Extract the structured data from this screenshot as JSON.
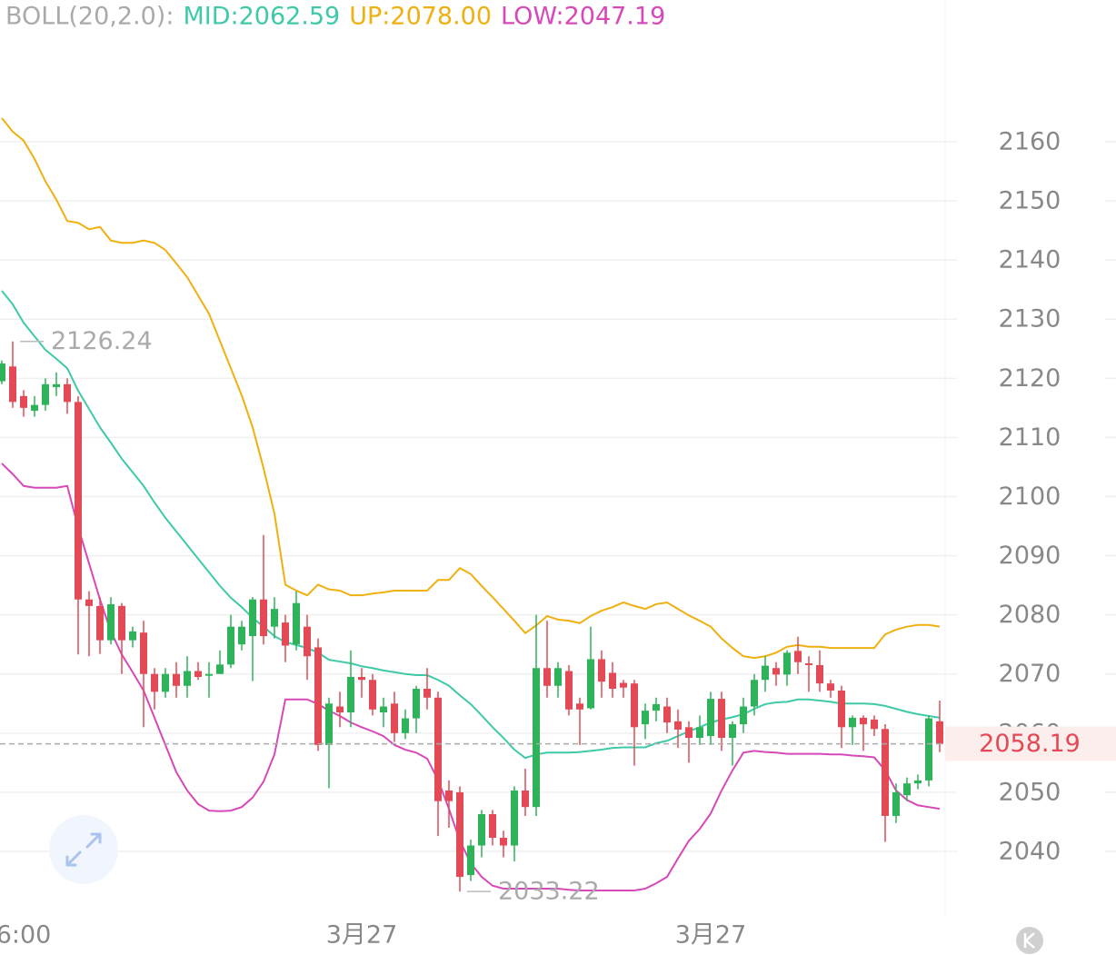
{
  "chart_data": {
    "type": "candlestick",
    "indicator": "BOLL(20,2.0):",
    "categories": [
      null,
      null,
      "6:00",
      null,
      null,
      null,
      null,
      null,
      null,
      null,
      null,
      null,
      null,
      null,
      null,
      null,
      null,
      null,
      null,
      null,
      null,
      null,
      null,
      null,
      null,
      null,
      null,
      null,
      null,
      null,
      null,
      null,
      null,
      "3月27",
      null,
      null,
      null,
      null,
      null,
      null,
      null,
      null,
      null,
      null,
      null,
      null,
      null,
      null,
      null,
      null,
      null,
      null,
      null,
      null,
      null,
      null,
      null,
      null,
      null,
      null,
      null,
      null,
      null,
      null,
      null,
      "3月27",
      null,
      null,
      null,
      null,
      null,
      null,
      null,
      null,
      null,
      null,
      null,
      null,
      null,
      null,
      null,
      null,
      null,
      null,
      null,
      null,
      null
    ],
    "open": [
      2119.5,
      2122,
      2117,
      2114.5,
      2115.5,
      2118.5,
      2119,
      2116,
      2082.6,
      2081.5,
      2075.7,
      2081.5,
      2075.7,
      2077,
      2070,
      2067,
      2070,
      2068,
      2070.5,
      2069.7,
      2070,
      2071.6,
      2075,
      2076.4,
      2082.6,
      2078,
      2078.7,
      2075,
      2078,
      2074.5,
      2058,
      2064.5,
      2063.5,
      2069.5,
      2069,
      2063.5,
      2065,
      2060,
      2062.5,
      2067.5,
      2066,
      2050.3,
      2050,
      2036,
      2041,
      2046.3,
      2042.3,
      2041,
      2050.3,
      2047.5,
      2071,
      2068,
      2070.5,
      2065,
      2064.2,
      2072.5,
      2070.2,
      2068.5,
      2068.4,
      2061.5,
      2063.8,
      2064.5,
      2062,
      2061,
      2059.2,
      2059.5,
      2065.8,
      2059.2,
      2061.5,
      2064.5,
      2069,
      2071,
      2069.9,
      2073.9,
      2071.8,
      2071.5,
      2068.4,
      2067.2,
      2061,
      2062.6,
      2062.3,
      2060.7,
      2046,
      2049.5,
      2051.5,
      2052,
      2062
    ],
    "high": [
      2123,
      2126.24,
      2118,
      2117,
      2120,
      2121,
      2120,
      2117,
      2084,
      2083,
      2083,
      2082,
      2078,
      2079,
      2071,
      2071,
      2072,
      2073,
      2072,
      2072,
      2074,
      2080,
      2079,
      2083,
      2093.5,
      2083,
      2080,
      2084,
      2080,
      2076,
      2066,
      2067,
      2074,
      2071,
      2070,
      2066,
      2067,
      2064,
      2068,
      2071,
      2067,
      2052,
      2051,
      2042,
      2047,
      2047,
      2043.5,
      2051,
      2054,
      2080,
      2079,
      2072,
      2071.5,
      2066,
      2078,
      2074,
      2072,
      2069,
      2069,
      2065,
      2066,
      2066,
      2064,
      2062,
      2063,
      2067,
      2067,
      2062,
      2066,
      2070,
      2073,
      2072,
      2074,
      2076.3,
      2073,
      2074,
      2069,
      2068,
      2063,
      2063,
      2063,
      2061.5,
      2051.5,
      2052.5,
      2053,
      2063,
      2065.5
    ],
    "low": [
      2119,
      2115,
      2113.5,
      2113.5,
      2114.5,
      2117,
      2114,
      2073.3,
      2073,
      2073.4,
      2075,
      2070,
      2074.5,
      2061,
      2064,
      2066,
      2066,
      2066,
      2069,
      2066,
      2070,
      2071,
      2074,
      2068.8,
      2075,
      2076,
      2072,
      2074,
      2069,
      2057,
      2050.7,
      2061,
      2061,
      2066,
      2063,
      2061,
      2058.5,
      2059,
      2060,
      2064,
      2042.6,
      2044,
      2033.22,
      2035,
      2039,
      2041,
      2039,
      2038.3,
      2046,
      2046,
      2066,
      2066,
      2063,
      2058,
      2064,
      2066,
      2066,
      2066,
      2054.5,
      2059,
      2062,
      2060,
      2057.5,
      2055,
      2058,
      2058,
      2057,
      2054.5,
      2060,
      2063,
      2067,
      2068,
      2068,
      2070,
      2067,
      2067,
      2066,
      2057.5,
      2058,
      2057,
      2059.5,
      2041.6,
      2044.8,
      2048.5,
      2050.5,
      2051,
      2056.8
    ],
    "close": [
      2122.5,
      2116,
      2115,
      2115.5,
      2119,
      2119,
      2116,
      2082.6,
      2081.5,
      2075.7,
      2081.8,
      2075.7,
      2077.2,
      2070,
      2067,
      2070,
      2068,
      2070.5,
      2069.5,
      2070,
      2071.6,
      2078,
      2078,
      2082.6,
      2076.4,
      2081,
      2074.8,
      2082,
      2073,
      2058,
      2065,
      2063.5,
      2069.5,
      2069,
      2064,
      2064.5,
      2060,
      2062.5,
      2067.5,
      2066,
      2048.5,
      2048.5,
      2035.7,
      2041,
      2046.3,
      2042.3,
      2041,
      2050.3,
      2047.5,
      2071,
      2068,
      2071,
      2064,
      2064,
      2072.5,
      2068.7,
      2067.5,
      2067.7,
      2061,
      2063.8,
      2064.9,
      2061.8,
      2060.6,
      2059.2,
      2061,
      2065.8,
      2059.2,
      2061.5,
      2064.5,
      2069,
      2071.4,
      2069.9,
      2073.6,
      2072,
      2071.5,
      2068.4,
      2067.2,
      2061,
      2062.6,
      2061.5,
      2060.7,
      2046,
      2050,
      2051.5,
      2052,
      2062.5,
      2058.19
    ],
    "up_color": "#2fb35a",
    "down_color": "#e34a55",
    "bands": [
      {
        "name": "MID:2062.59",
        "color": "#3ecaa8",
        "values": [
          2134.8,
          2132.5,
          2129.4,
          2127.1,
          2124.8,
          2123.3,
          2121.7,
          2117.9,
          2114.8,
          2111.7,
          2109.1,
          2106.4,
          2104.1,
          2101.8,
          2099.0,
          2096.4,
          2094.1,
          2091.8,
          2089.5,
          2087.2,
          2084.9,
          2082.9,
          2081.3,
          2079.5,
          2078.0,
          2076.4,
          2075.4,
          2074.9,
          2074.4,
          2073.6,
          2072.4,
          2072.1,
          2071.8,
          2071.3,
          2071.0,
          2070.6,
          2070.3,
          2070.0,
          2069.8,
          2069.8,
          2069.0,
          2068.0,
          2066.4,
          2064.9,
          2063.0,
          2061.0,
          2059.2,
          2057.2,
          2055.8,
          2056.4,
          2056.7,
          2056.7,
          2056.7,
          2056.8,
          2057.0,
          2057.2,
          2057.5,
          2057.6,
          2057.6,
          2057.6,
          2058.3,
          2058.7,
          2059.5,
          2060.3,
          2061.0,
          2061.8,
          2062.3,
          2062.7,
          2063.2,
          2064.1,
          2064.9,
          2065.2,
          2065.3,
          2065.7,
          2065.7,
          2065.5,
          2065.3,
          2065.0,
          2065.0,
          2065.0,
          2064.9,
          2064.6,
          2064.1,
          2063.6,
          2063.2,
          2062.9,
          2062.6
        ]
      },
      {
        "name": "UP:2078.00",
        "color": "#efb010",
        "values": [
          2164.0,
          2161.7,
          2160.2,
          2157.1,
          2153.3,
          2150.2,
          2146.6,
          2146.3,
          2145.2,
          2145.6,
          2143.3,
          2142.9,
          2142.9,
          2143.3,
          2142.9,
          2141.7,
          2139.4,
          2137.1,
          2134.0,
          2130.9,
          2126.3,
          2121.7,
          2117.1,
          2111.7,
          2104.8,
          2097.1,
          2085.1,
          2084.1,
          2083.3,
          2085.1,
          2084.3,
          2084.1,
          2083.3,
          2083.3,
          2083.6,
          2083.8,
          2084.1,
          2084.1,
          2084.1,
          2084.1,
          2085.9,
          2085.9,
          2087.9,
          2086.9,
          2084.9,
          2083.0,
          2081.0,
          2079.0,
          2076.9,
          2078.2,
          2079.8,
          2079.2,
          2079.0,
          2078.6,
          2079.8,
          2080.7,
          2081.3,
          2082.1,
          2081.5,
          2081.0,
          2081.8,
          2082.1,
          2081.0,
          2079.9,
          2079.0,
          2078.0,
          2076.0,
          2074.4,
          2073.0,
          2072.7,
          2073.0,
          2073.6,
          2074.6,
          2074.9,
          2074.6,
          2074.6,
          2074.4,
          2074.4,
          2074.4,
          2074.4,
          2074.4,
          2076.7,
          2077.5,
          2078.0,
          2078.3,
          2078.3,
          2078.0
        ]
      },
      {
        "name": "LOW:2047.19",
        "color": "#d748b8",
        "values": [
          2105.6,
          2103.8,
          2101.8,
          2101.5,
          2101.5,
          2101.5,
          2101.8,
          2094.8,
          2088.7,
          2082.6,
          2077.2,
          2073.3,
          2070.3,
          2067.2,
          2062.6,
          2058.0,
          2053.4,
          2050.3,
          2048.0,
          2046.9,
          2046.8,
          2046.9,
          2047.5,
          2049.1,
          2051.8,
          2056.4,
          2065.7,
          2065.7,
          2065.7,
          2064.9,
          2063.8,
          2062.9,
          2061.8,
          2061.0,
          2060.3,
          2059.5,
          2058.0,
          2057.2,
          2056.7,
          2055.7,
          2052.1,
          2047.2,
          2041.8,
          2038.0,
          2035.7,
          2034.2,
          2033.7,
          2033.7,
          2033.7,
          2033.7,
          2033.7,
          2033.7,
          2033.5,
          2033.4,
          2033.4,
          2033.4,
          2033.4,
          2033.4,
          2033.4,
          2033.7,
          2034.6,
          2035.7,
          2038.8,
          2041.8,
          2043.8,
          2046.4,
          2050.3,
          2053.7,
          2056.7,
          2057.0,
          2056.8,
          2056.7,
          2056.5,
          2056.5,
          2056.5,
          2056.5,
          2056.4,
          2056.4,
          2056.2,
          2056.1,
          2055.9,
          2053.7,
          2050.3,
          2048.7,
          2047.8,
          2047.5,
          2047.2
        ]
      }
    ],
    "ylim": [
      2029.09,
      2177.82
    ],
    "yticks": [
      2040,
      2050,
      2060,
      2070,
      2080,
      2090,
      2100,
      2110,
      2120,
      2130,
      2140,
      2150,
      2160
    ],
    "grid": true
  }
}
